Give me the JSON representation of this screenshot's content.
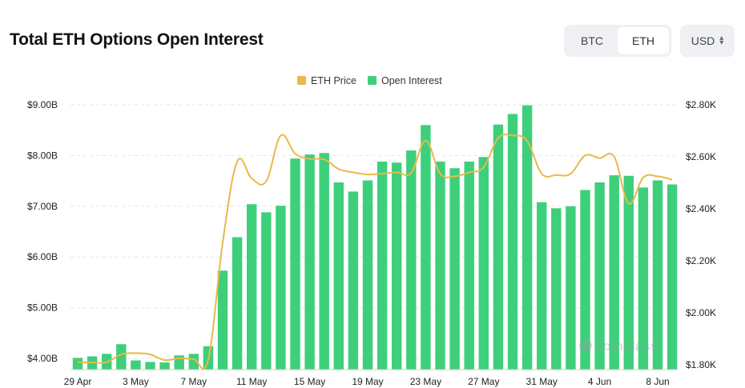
{
  "header": {
    "title": "Total ETH Options Open Interest",
    "toggle": [
      {
        "label": "BTC",
        "active": false
      },
      {
        "label": "ETH",
        "active": true
      }
    ],
    "currency": "USD"
  },
  "colors": {
    "bar": "#3ecf7b",
    "price_line": "#e9b949",
    "grid": "#e6e6e6"
  },
  "chart_data": {
    "type": "bar",
    "legend": [
      {
        "name": "ETH Price",
        "color": "#e9b949"
      },
      {
        "name": "Open Interest",
        "color": "#3ecf7b"
      }
    ],
    "legend_position": "top-center",
    "x_tick_labels": [
      "29 Apr",
      "3 May",
      "7 May",
      "11 May",
      "15 May",
      "19 May",
      "23 May",
      "27 May",
      "31 May",
      "4 Jun",
      "8 Jun"
    ],
    "categories": [
      "29 Apr",
      "30 Apr",
      "1 May",
      "2 May",
      "3 May",
      "4 May",
      "5 May",
      "6 May",
      "7 May",
      "8 May",
      "9 May",
      "10 May",
      "11 May",
      "12 May",
      "13 May",
      "14 May",
      "15 May",
      "16 May",
      "17 May",
      "18 May",
      "19 May",
      "20 May",
      "21 May",
      "22 May",
      "23 May",
      "24 May",
      "25 May",
      "26 May",
      "27 May",
      "28 May",
      "29 May",
      "30 May",
      "31 May",
      "1 Jun",
      "2 Jun",
      "3 Jun",
      "4 Jun",
      "5 Jun",
      "6 Jun",
      "7 Jun",
      "8 Jun",
      "9 Jun"
    ],
    "series": [
      {
        "name": "Open Interest",
        "axis": "left",
        "values": [
          4.01,
          4.04,
          4.09,
          4.28,
          3.96,
          3.93,
          3.92,
          4.06,
          4.09,
          4.24,
          5.73,
          6.39,
          7.04,
          6.88,
          7.01,
          7.94,
          8.02,
          8.05,
          7.47,
          7.29,
          7.51,
          7.88,
          7.86,
          8.1,
          8.6,
          7.88,
          7.75,
          7.88,
          7.97,
          8.61,
          8.82,
          8.99,
          7.08,
          6.96,
          7.0,
          7.32,
          7.47,
          7.61,
          7.6,
          7.37,
          7.51,
          7.43
        ]
      },
      {
        "name": "ETH Price",
        "axis": "right",
        "values": [
          1810,
          1809,
          1810,
          1840,
          1845,
          1840,
          1818,
          1825,
          1822,
          1820,
          2270,
          2582,
          2517,
          2506,
          2682,
          2612,
          2592,
          2590,
          2553,
          2540,
          2532,
          2535,
          2540,
          2538,
          2662,
          2535,
          2525,
          2540,
          2560,
          2672,
          2682,
          2661,
          2535,
          2530,
          2535,
          2605,
          2595,
          2600,
          2420,
          2520,
          2525,
          2512
        ]
      }
    ],
    "y_left": {
      "ticks": [
        "$4.00B",
        "$5.00B",
        "$6.00B",
        "$7.00B",
        "$8.00B",
        "$9.00B"
      ],
      "range": [
        3.85,
        9.0
      ],
      "unit": "B"
    },
    "y_right": {
      "ticks": [
        "$1.80K",
        "$2.00K",
        "$2.20K",
        "$2.40K",
        "$2.60K",
        "$2.80K"
      ],
      "range": [
        1800,
        2800
      ],
      "unit": "K"
    },
    "grid": true,
    "watermark": "coinglass"
  }
}
